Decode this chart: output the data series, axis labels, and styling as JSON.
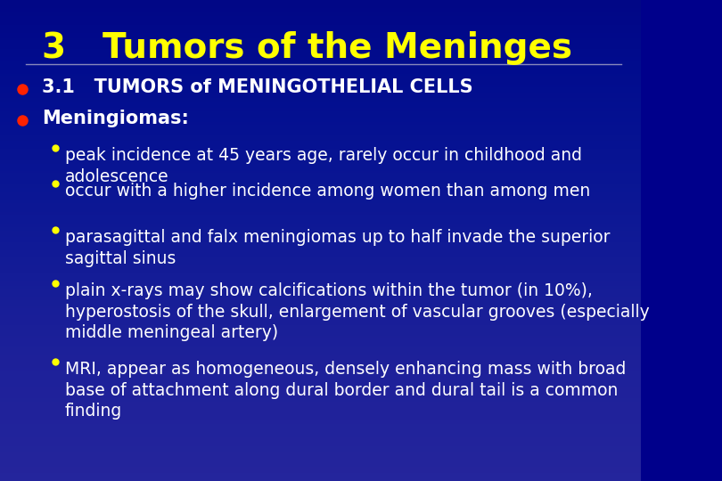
{
  "background_color": "#00008B",
  "title_number": "3",
  "title_text": "Tumors of the Meninges",
  "title_color": "#FFFF00",
  "title_fontsize": 28,
  "title_number_fontsize": 28,
  "header_line_color": "#AAAACC",
  "bullet_color_large": "#FF2200",
  "bullet_color_small": "#FFFF00",
  "text_color_white": "#FFFFFF",
  "text_color_yellow": "#FFFF00",
  "l1_items": [
    {
      "text": "3.1   TUMORS of MENINGOTHELIAL CELLS",
      "bold": true,
      "color": "#FFFFFF",
      "fontsize": 15
    },
    {
      "text": "Meningiomas:",
      "bold": true,
      "color": "#FFFFFF",
      "fontsize": 15
    }
  ],
  "l2_items": [
    {
      "text": "peak incidence at 45 years age, rarely occur in childhood and\nadolescence",
      "fontsize": 13.5
    },
    {
      "text": "occur with a higher incidence among women than among men",
      "fontsize": 13.5
    },
    {
      "text": "parasagittal and falx meningiomas up to half invade the superior\nsagittal sinus",
      "fontsize": 13.5
    },
    {
      "text": "plain x-rays may show calcifications within the tumor (in 10%),\nhyperostosis of the skull, enlargement of vascular grooves (especially\nmiddle meningeal artery)",
      "fontsize": 13.5
    },
    {
      "text": "MRI, appear as homogeneous, densely enhancing mass with broad\nbase of attachment along dural border and dural tail is a common\nfinding",
      "fontsize": 13.5
    }
  ]
}
